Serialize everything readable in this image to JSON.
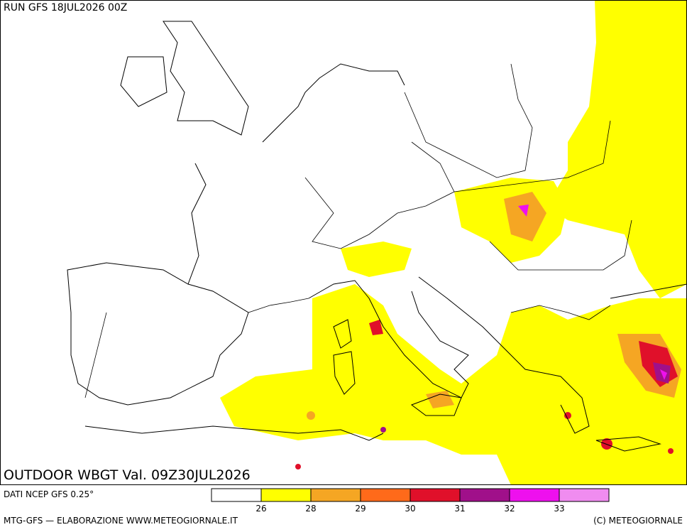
{
  "header": {
    "run": "RUN GFS 18JUL2026 00Z"
  },
  "map": {
    "title": "OUTDOOR WBGT Val. 09Z30JUL2026"
  },
  "footer": {
    "source": "DATI NCEP GFS 0.25°",
    "credit": "MTG-GFS — ELABORAZIONE WWW.METEOGIORNALE.IT",
    "copyright": "(C) METEOGIORNALE"
  },
  "legend": {
    "colors": [
      "#ffffff",
      "#ffff00",
      "#f5a623",
      "#ff6a1a",
      "#e0102a",
      "#a0108a",
      "#ee10ee",
      "#f08cf0"
    ],
    "labels": [
      26,
      28,
      29,
      30,
      31,
      32,
      33
    ]
  }
}
